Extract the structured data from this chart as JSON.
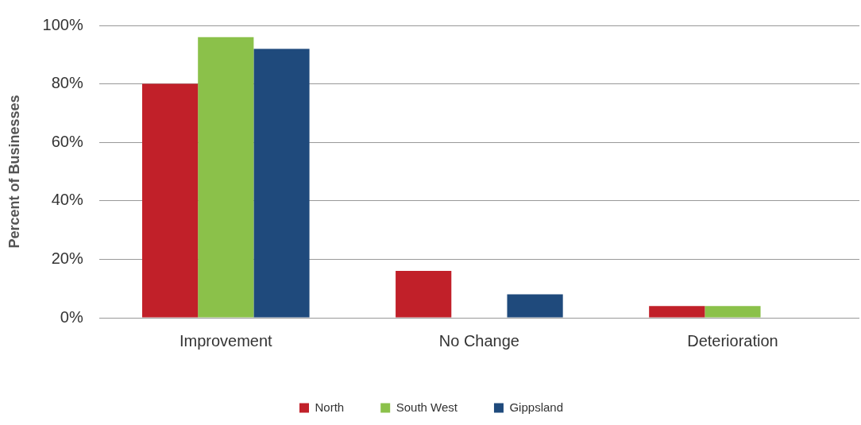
{
  "chart_data": {
    "type": "bar",
    "ylabel": "Percent of Businesses",
    "categories": [
      "Improvement",
      "No Change",
      "Deterioration"
    ],
    "series": [
      {
        "name": "North",
        "color": "#c12029",
        "values": [
          80,
          16,
          4
        ]
      },
      {
        "name": "South West",
        "color": "#8bc14a",
        "values": [
          96,
          0,
          4
        ]
      },
      {
        "name": "Gippsland",
        "color": "#1f4a7c",
        "values": [
          92,
          8,
          0
        ]
      }
    ],
    "ylim": [
      0,
      100
    ],
    "yticks": [
      {
        "value": 0,
        "label": "0%"
      },
      {
        "value": 20,
        "label": "20%"
      },
      {
        "value": 40,
        "label": "40%"
      },
      {
        "value": 60,
        "label": "60%"
      },
      {
        "value": 80,
        "label": "80%"
      },
      {
        "value": 100,
        "label": "100%"
      }
    ],
    "grid": "y",
    "legend": "bottom"
  }
}
